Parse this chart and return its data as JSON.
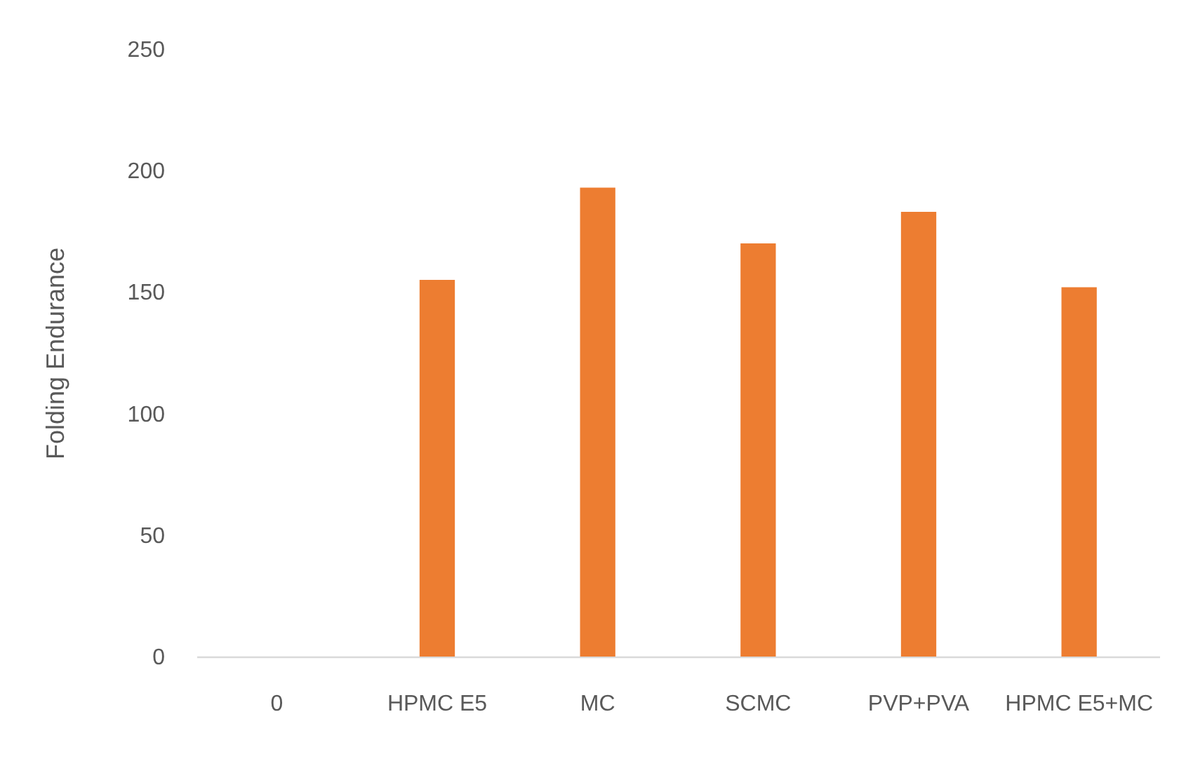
{
  "chart_data": {
    "type": "bar",
    "ylabel": "Folding Endurance",
    "categories": [
      "0",
      "HPMC E5",
      "MC",
      "SCMC",
      "PVP+PVA",
      "HPMC E5+MC"
    ],
    "values": [
      0,
      155,
      193,
      170,
      183,
      152
    ],
    "color": "#ed7d31",
    "ylim": [
      0,
      250
    ],
    "yticks": [
      0,
      50,
      100,
      150,
      200,
      250
    ],
    "grid": false
  }
}
